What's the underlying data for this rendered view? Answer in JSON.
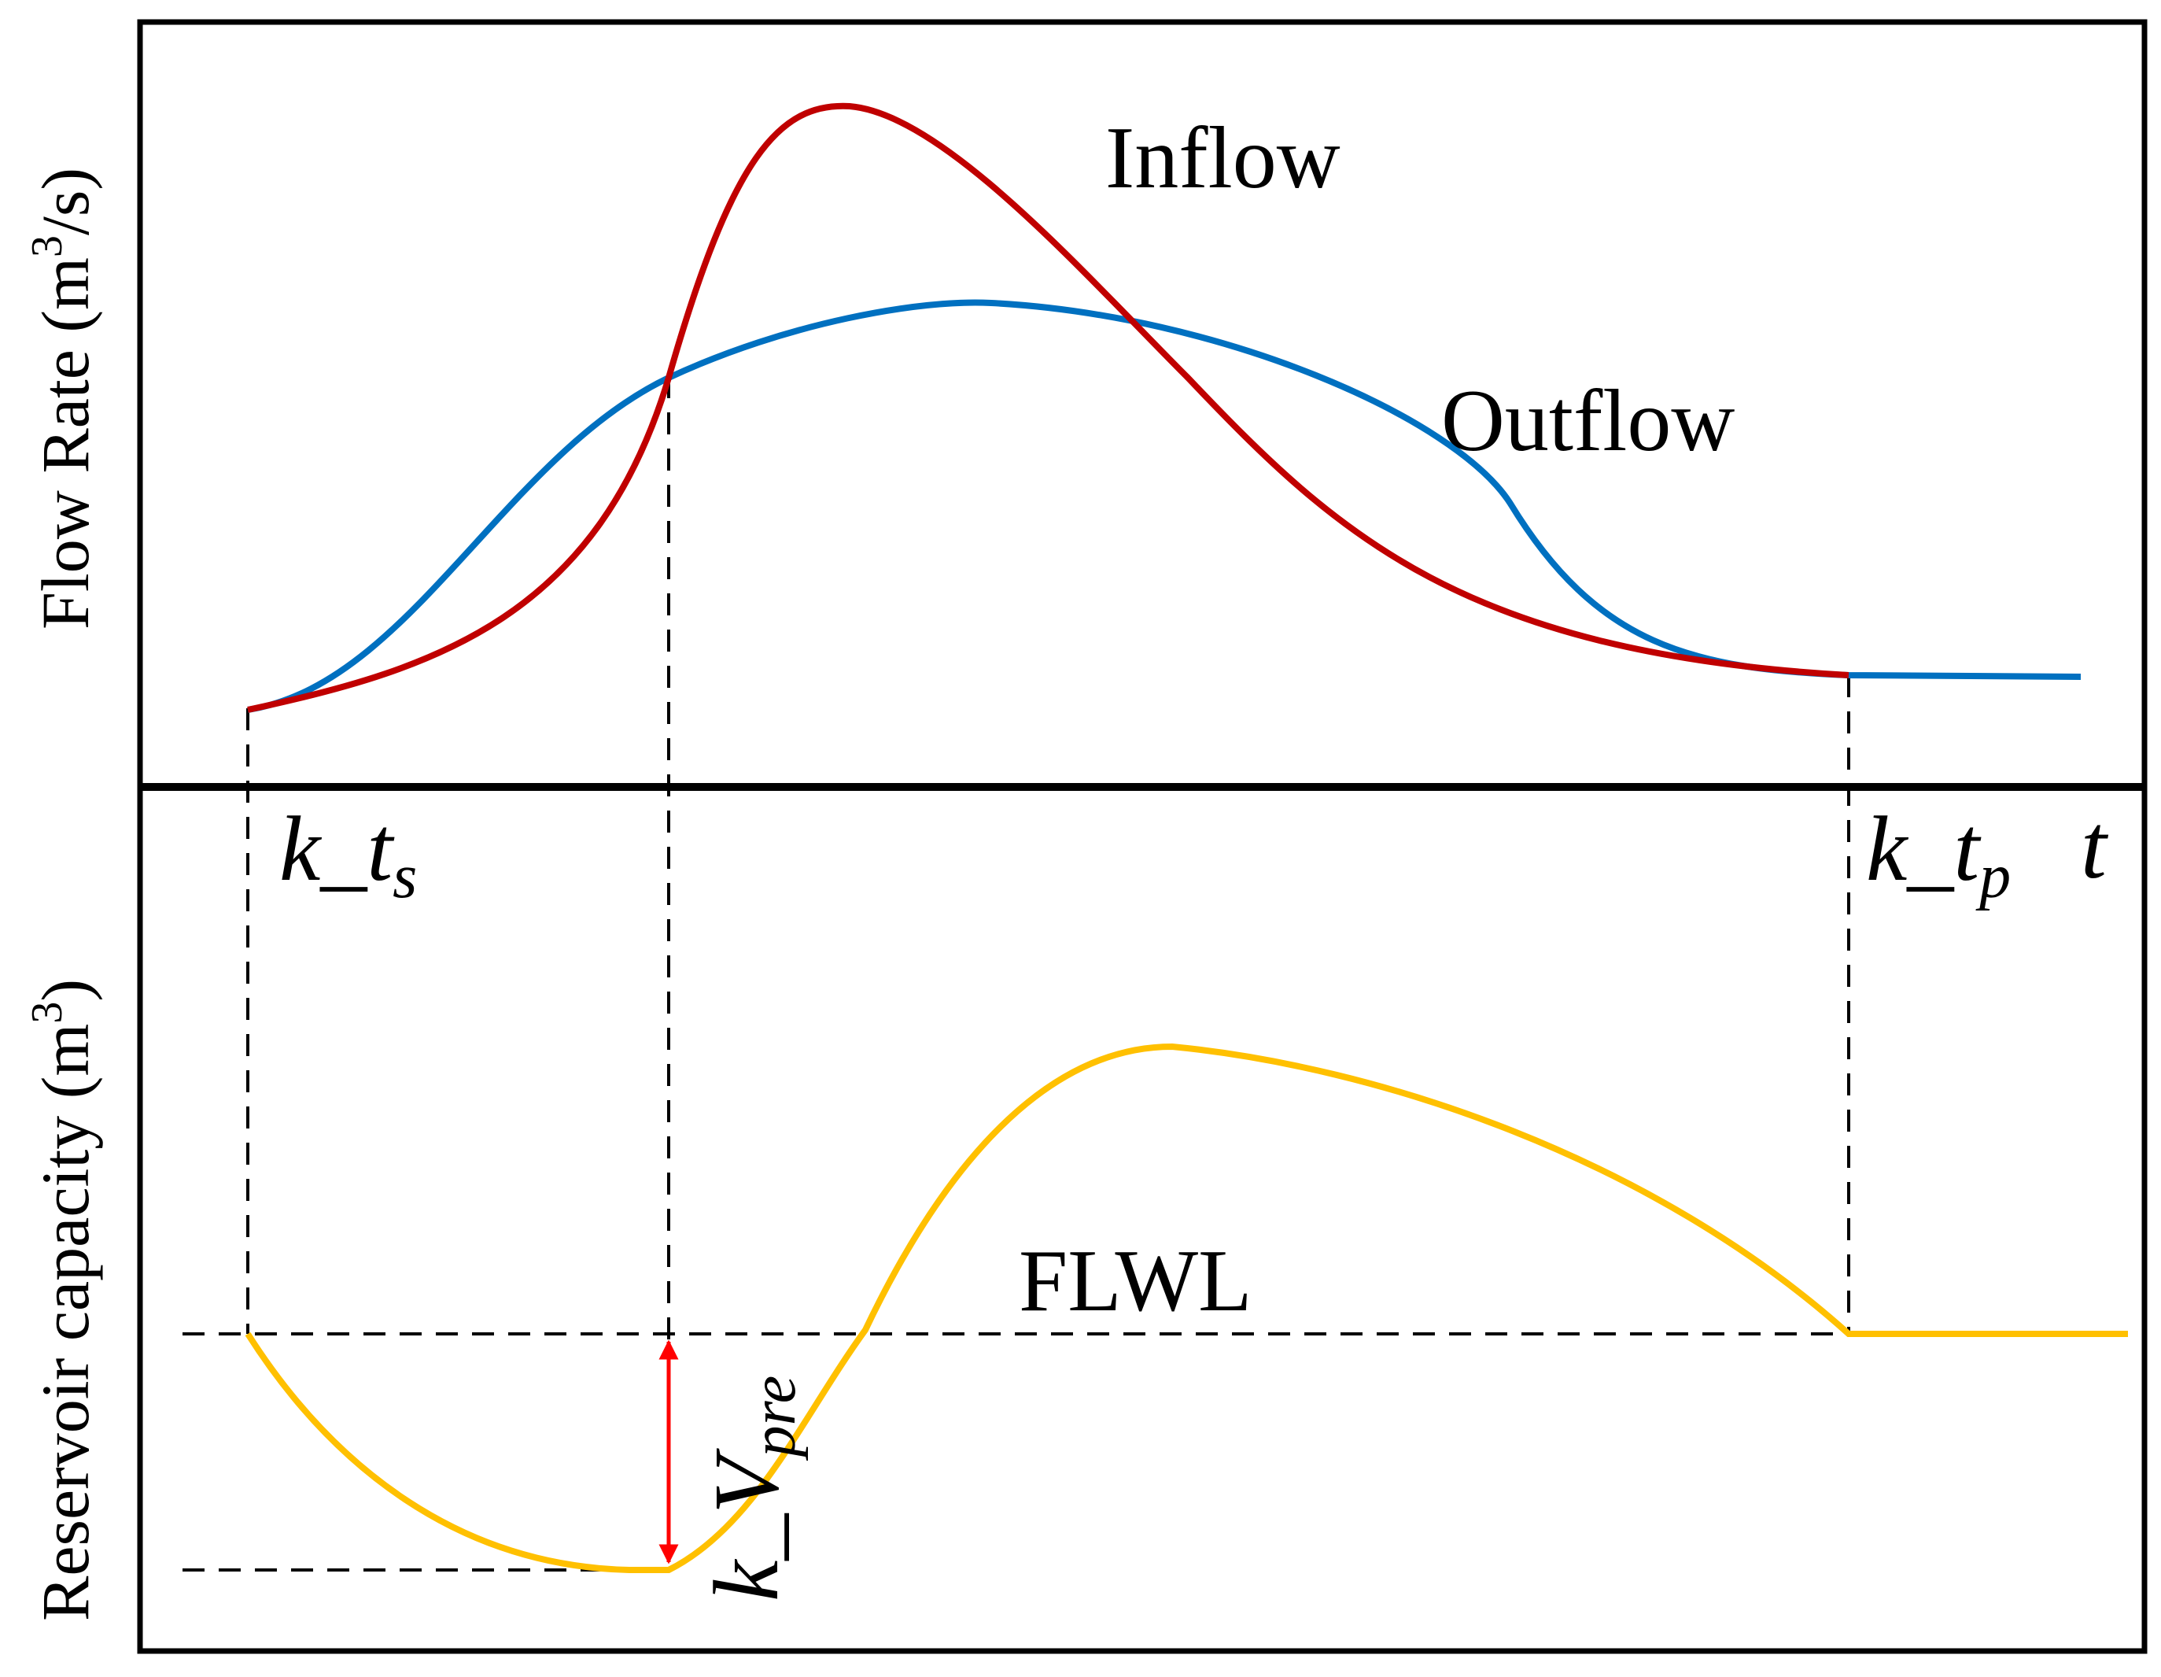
{
  "upper_panel": {
    "ylabel_main": "Flow Rate (m",
    "ylabel_sup": "3",
    "ylabel_tail": "/s)",
    "inflow_label": "Inflow",
    "outflow_label": "Outflow"
  },
  "lower_panel": {
    "ylabel_main": "Reservoir capacity (m",
    "ylabel_sup": "3",
    "ylabel_tail": ")",
    "flwl_label": "FLWL",
    "vpre_label": {
      "base": "k_V",
      "sub": "pre"
    }
  },
  "time_marks": {
    "ts": {
      "base": "k_t",
      "sub": "s"
    },
    "tp": {
      "base": "k_t",
      "sub": "p"
    },
    "axis_t": "t"
  },
  "colors": {
    "inflow": "#C00000",
    "outflow": "#0070C0",
    "capacity": "#FFC000",
    "arrow": "#FF0000",
    "frame": "#000000"
  }
}
